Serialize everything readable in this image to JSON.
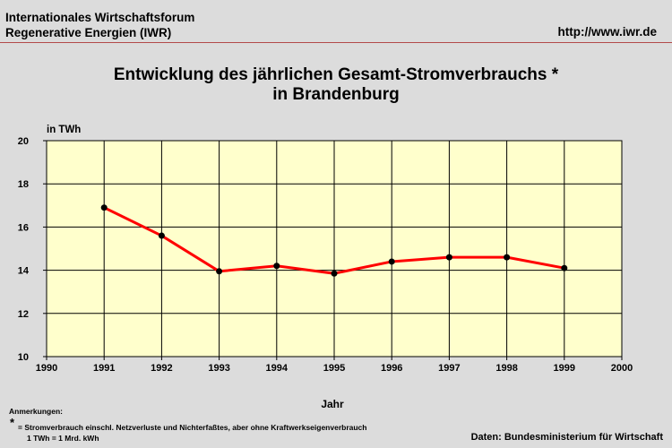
{
  "header": {
    "org_line1": "Internationales Wirtschaftsforum",
    "org_line2": "Regenerative Energien (IWR)",
    "url": "http://www.iwr.de"
  },
  "colors": {
    "background": "#dcdcdc",
    "plot_area": "#ffffcc",
    "series_line": "#ff0000",
    "marker": "#000000",
    "header_rule": "#b34a4a"
  },
  "chart_data": {
    "type": "line",
    "title_line1": "Entwicklung des jährlichen Gesamt-Stromverbrauchs *",
    "title_line2": "in Brandenburg",
    "ylabel": "in TWh",
    "xlabel": "Jahr",
    "xlim": [
      1990,
      2000
    ],
    "ylim": [
      10,
      20
    ],
    "x_ticks": [
      1990,
      1991,
      1992,
      1993,
      1994,
      1995,
      1996,
      1997,
      1998,
      1999,
      2000
    ],
    "y_ticks": [
      10,
      12,
      14,
      16,
      18,
      20
    ],
    "grid": true,
    "series": [
      {
        "x": [
          1991,
          1992,
          1993,
          1994,
          1995,
          1996,
          1997,
          1998,
          1999
        ],
        "values": [
          16.9,
          15.6,
          13.95,
          14.2,
          13.85,
          14.4,
          14.6,
          14.6,
          14.1
        ]
      }
    ]
  },
  "notes": {
    "heading": "Anmerkungen:",
    "star": "*",
    "line1": "= Stromverbrauch einschl. Netzverluste und Nichterfaßtes, aber ohne Kraftwerkseigenverbrauch",
    "line2": "1 TWh = 1 Mrd. kWh"
  },
  "source": "Daten: Bundesministerium für Wirtschaft"
}
